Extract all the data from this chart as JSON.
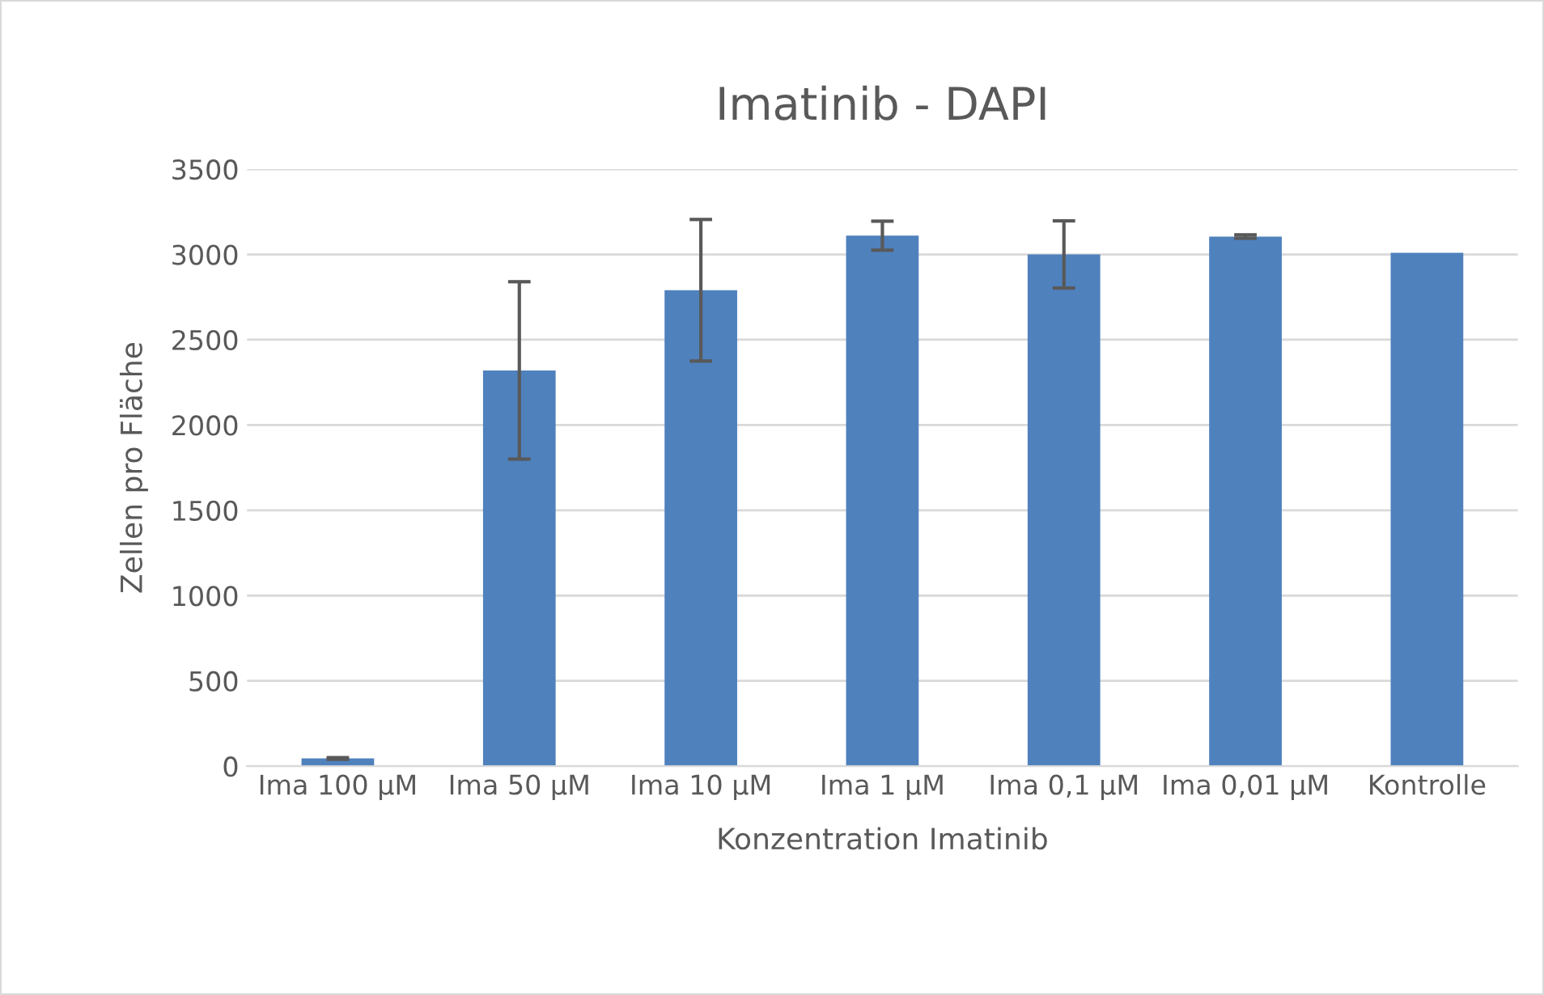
{
  "chart_data": {
    "type": "bar",
    "title": "Imatinib - DAPI",
    "xlabel": "Konzentration Imatinib",
    "ylabel": "Zellen pro Fläche",
    "categories": [
      "Ima 100 µM",
      "Ima 50 µM",
      "Ima 10 µM",
      "Ima 1 µM",
      "Ima 0,1 µM",
      "Ima 0,01 µM",
      "Kontrolle"
    ],
    "values": [
      45,
      2320,
      2790,
      3110,
      3000,
      3105,
      3010
    ],
    "errors": [
      5,
      520,
      415,
      85,
      197,
      10,
      null
    ],
    "color": "#4f81bd",
    "ylim": [
      0,
      3500
    ],
    "yticks": [
      0,
      500,
      1000,
      1500,
      2000,
      2500,
      3000,
      3500
    ],
    "grid": "y",
    "legend": false
  }
}
